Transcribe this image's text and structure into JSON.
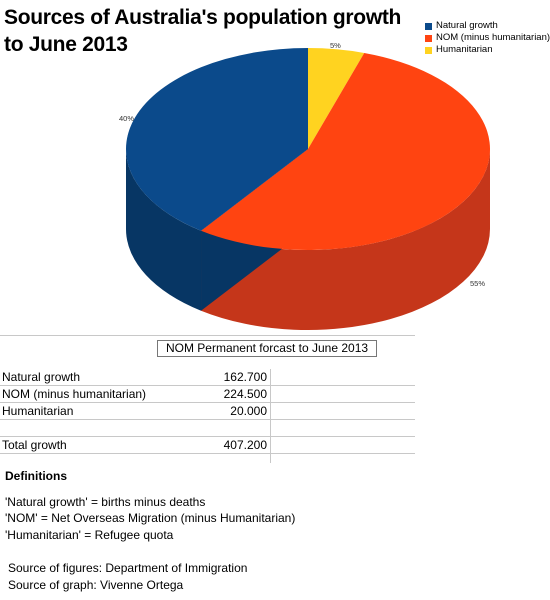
{
  "title_lines": [
    "Sources of Australia's population growth",
    "to June 2013"
  ],
  "chart_data": {
    "type": "pie",
    "title": "Sources of Australia's population growth to June 2013",
    "categories": [
      "Natural growth",
      "NOM  (minus humanitarian)",
      "Humanitarian"
    ],
    "values": [
      40,
      55,
      5
    ],
    "labels": [
      "40%",
      "55%",
      "5%"
    ],
    "colors": [
      "#0b4a8b",
      "#ff4411",
      "#ffd320"
    ],
    "side_colors": [
      "#073664",
      "#c5361a",
      "#c9a010"
    ],
    "legend_position": "top-right",
    "three_d": true
  },
  "table": {
    "title": "NOM Permanent forcast to June 2013",
    "rows": [
      {
        "label": "Natural growth",
        "value": "162.700"
      },
      {
        "label": "NOM  (minus humanitarian)",
        "value": "224.500"
      },
      {
        "label": "Humanitarian",
        "value": "20.000"
      },
      {
        "label": "",
        "value": ""
      },
      {
        "label": "Total growth",
        "value": "407.200"
      }
    ]
  },
  "definitions": {
    "heading": "Definitions",
    "lines": [
      "'Natural growth' = births minus deaths",
      "'NOM' = Net Overseas Migration (minus Humanitarian)",
      "'Humanitarian' = Refugee quota"
    ],
    "sources": [
      "Source of figures: Department of Immigration",
      "Source of graph: Vivenne Ortega"
    ]
  }
}
